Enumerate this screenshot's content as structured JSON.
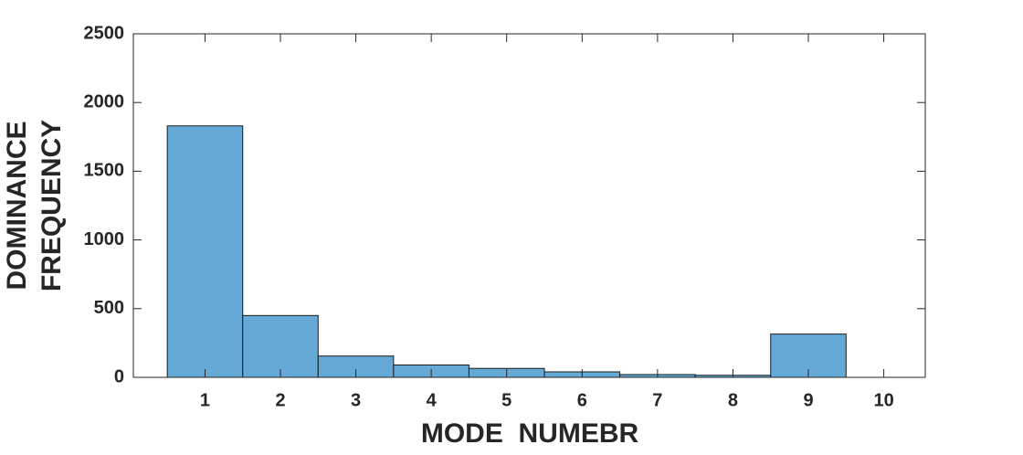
{
  "chart_data": {
    "type": "histogram",
    "xlabel": "MODE  NUMEBR",
    "ylabel": [
      "DOMINANCE",
      "FREQUENCY"
    ],
    "bins": [
      0.5,
      1.5,
      2.5,
      3.5,
      4.5,
      5.5,
      6.5,
      7.5,
      8.5,
      9.5
    ],
    "values": [
      1830,
      450,
      155,
      90,
      65,
      40,
      20,
      15,
      315
    ],
    "color": "#65a9d7",
    "edgecolor": "#1a1a1a",
    "xlim": [
      0.05,
      10.55
    ],
    "xticks": [
      1,
      2,
      3,
      4,
      5,
      6,
      7,
      8,
      9,
      10
    ],
    "ylim": [
      0,
      2500
    ],
    "yticks": [
      0,
      500,
      1000,
      1500,
      2000,
      2500
    ],
    "grid": false
  }
}
